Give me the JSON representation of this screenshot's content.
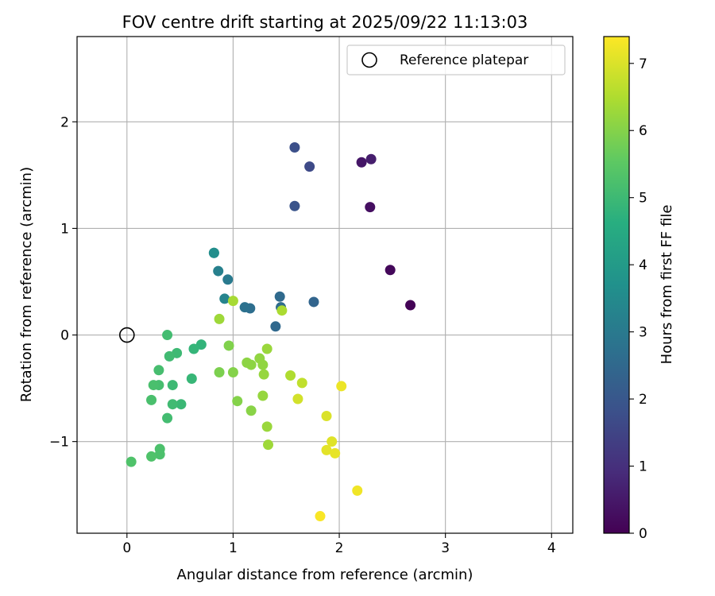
{
  "chart_data": {
    "type": "scatter",
    "title": "FOV centre drift starting at 2025/09/22 11:13:03",
    "xlabel": "Angular distance from reference (arcmin)",
    "ylabel": "Rotation from reference (arcmin)",
    "xlim": [
      -0.47,
      4.2
    ],
    "ylim": [
      -1.86,
      2.8
    ],
    "xticks": [
      0,
      1,
      2,
      3,
      4
    ],
    "yticks": [
      -1,
      0,
      1,
      2
    ],
    "xtick_labels": [
      "0",
      "1",
      "2",
      "3",
      "4"
    ],
    "ytick_labels": [
      "−1",
      "0",
      "1",
      "2"
    ],
    "grid": true,
    "legend": {
      "position": "top-right",
      "entries": [
        "Reference platepar"
      ]
    },
    "reference_point": {
      "x": 0,
      "y": 0
    },
    "colorbar": {
      "label": "Hours from first FF file",
      "range": [
        0,
        7.4
      ],
      "ticks": [
        0,
        1,
        2,
        3,
        4,
        5,
        6,
        7
      ],
      "tick_labels": [
        "0",
        "1",
        "2",
        "3",
        "4",
        "5",
        "6",
        "7"
      ],
      "colormap": "viridis"
    },
    "points": [
      {
        "x": 2.67,
        "y": 0.28,
        "h": 0.05
      },
      {
        "x": 2.48,
        "y": 0.61,
        "h": 0.15
      },
      {
        "x": 2.29,
        "y": 1.2,
        "h": 0.3
      },
      {
        "x": 2.21,
        "y": 1.62,
        "h": 0.45
      },
      {
        "x": 2.3,
        "y": 1.65,
        "h": 0.6
      },
      {
        "x": 1.72,
        "y": 1.58,
        "h": 1.65
      },
      {
        "x": 1.58,
        "y": 1.76,
        "h": 1.8
      },
      {
        "x": 1.58,
        "y": 1.21,
        "h": 1.9
      },
      {
        "x": 1.76,
        "y": 0.31,
        "h": 2.4
      },
      {
        "x": 1.4,
        "y": 0.08,
        "h": 2.5
      },
      {
        "x": 1.44,
        "y": 0.36,
        "h": 2.55
      },
      {
        "x": 1.45,
        "y": 0.26,
        "h": 2.6
      },
      {
        "x": 1.16,
        "y": 0.25,
        "h": 2.65
      },
      {
        "x": 1.11,
        "y": 0.26,
        "h": 2.75
      },
      {
        "x": 0.95,
        "y": 0.52,
        "h": 3.0
      },
      {
        "x": 0.86,
        "y": 0.6,
        "h": 3.2
      },
      {
        "x": 0.92,
        "y": 0.34,
        "h": 3.3
      },
      {
        "x": 0.82,
        "y": 0.77,
        "h": 3.55
      },
      {
        "x": 0.82,
        "y": 0.77,
        "h": 3.6
      },
      {
        "x": 0.7,
        "y": -0.09,
        "h": 4.8
      },
      {
        "x": 0.63,
        "y": -0.13,
        "h": 4.85
      },
      {
        "x": 0.61,
        "y": -0.41,
        "h": 4.9
      },
      {
        "x": 0.51,
        "y": -0.65,
        "h": 4.95
      },
      {
        "x": 0.47,
        "y": -0.17,
        "h": 5.0
      },
      {
        "x": 0.43,
        "y": -0.47,
        "h": 5.0
      },
      {
        "x": 0.43,
        "y": -0.65,
        "h": 5.05
      },
      {
        "x": 0.4,
        "y": -0.2,
        "h": 5.05
      },
      {
        "x": 0.38,
        "y": 0.0,
        "h": 5.1
      },
      {
        "x": 0.38,
        "y": -0.78,
        "h": 5.1
      },
      {
        "x": 0.3,
        "y": -0.33,
        "h": 5.15
      },
      {
        "x": 0.3,
        "y": -0.47,
        "h": 5.15
      },
      {
        "x": 0.25,
        "y": -0.47,
        "h": 5.2
      },
      {
        "x": 0.23,
        "y": -0.61,
        "h": 5.2
      },
      {
        "x": 0.31,
        "y": -1.07,
        "h": 5.25
      },
      {
        "x": 0.31,
        "y": -1.12,
        "h": 5.25
      },
      {
        "x": 0.23,
        "y": -1.14,
        "h": 5.3
      },
      {
        "x": 0.04,
        "y": -1.19,
        "h": 5.3
      },
      {
        "x": 0.87,
        "y": -0.35,
        "h": 5.9
      },
      {
        "x": 0.96,
        "y": -0.1,
        "h": 5.95
      },
      {
        "x": 1.0,
        "y": -0.35,
        "h": 6.0
      },
      {
        "x": 1.04,
        "y": -0.62,
        "h": 6.0
      },
      {
        "x": 1.17,
        "y": -0.71,
        "h": 6.05
      },
      {
        "x": 1.13,
        "y": -0.26,
        "h": 6.1
      },
      {
        "x": 1.17,
        "y": -0.28,
        "h": 6.1
      },
      {
        "x": 1.25,
        "y": -0.22,
        "h": 6.15
      },
      {
        "x": 1.28,
        "y": -0.28,
        "h": 6.15
      },
      {
        "x": 1.29,
        "y": -0.37,
        "h": 6.2
      },
      {
        "x": 1.28,
        "y": -0.57,
        "h": 6.2
      },
      {
        "x": 1.32,
        "y": -0.13,
        "h": 6.25
      },
      {
        "x": 1.32,
        "y": -0.86,
        "h": 6.25
      },
      {
        "x": 1.33,
        "y": -1.03,
        "h": 6.3
      },
      {
        "x": 0.87,
        "y": 0.15,
        "h": 6.3
      },
      {
        "x": 1.0,
        "y": 0.32,
        "h": 6.4
      },
      {
        "x": 1.46,
        "y": 0.23,
        "h": 6.45
      },
      {
        "x": 1.54,
        "y": -0.38,
        "h": 6.5
      },
      {
        "x": 1.65,
        "y": -0.45,
        "h": 6.7
      },
      {
        "x": 1.61,
        "y": -0.6,
        "h": 6.9
      },
      {
        "x": 1.88,
        "y": -0.76,
        "h": 7.0
      },
      {
        "x": 1.93,
        "y": -1.0,
        "h": 7.05
      },
      {
        "x": 1.88,
        "y": -1.08,
        "h": 7.1
      },
      {
        "x": 1.96,
        "y": -1.11,
        "h": 7.15
      },
      {
        "x": 2.02,
        "y": -0.48,
        "h": 7.2
      },
      {
        "x": 2.17,
        "y": -1.46,
        "h": 7.25
      },
      {
        "x": 1.82,
        "y": -1.7,
        "h": 7.35
      }
    ]
  }
}
